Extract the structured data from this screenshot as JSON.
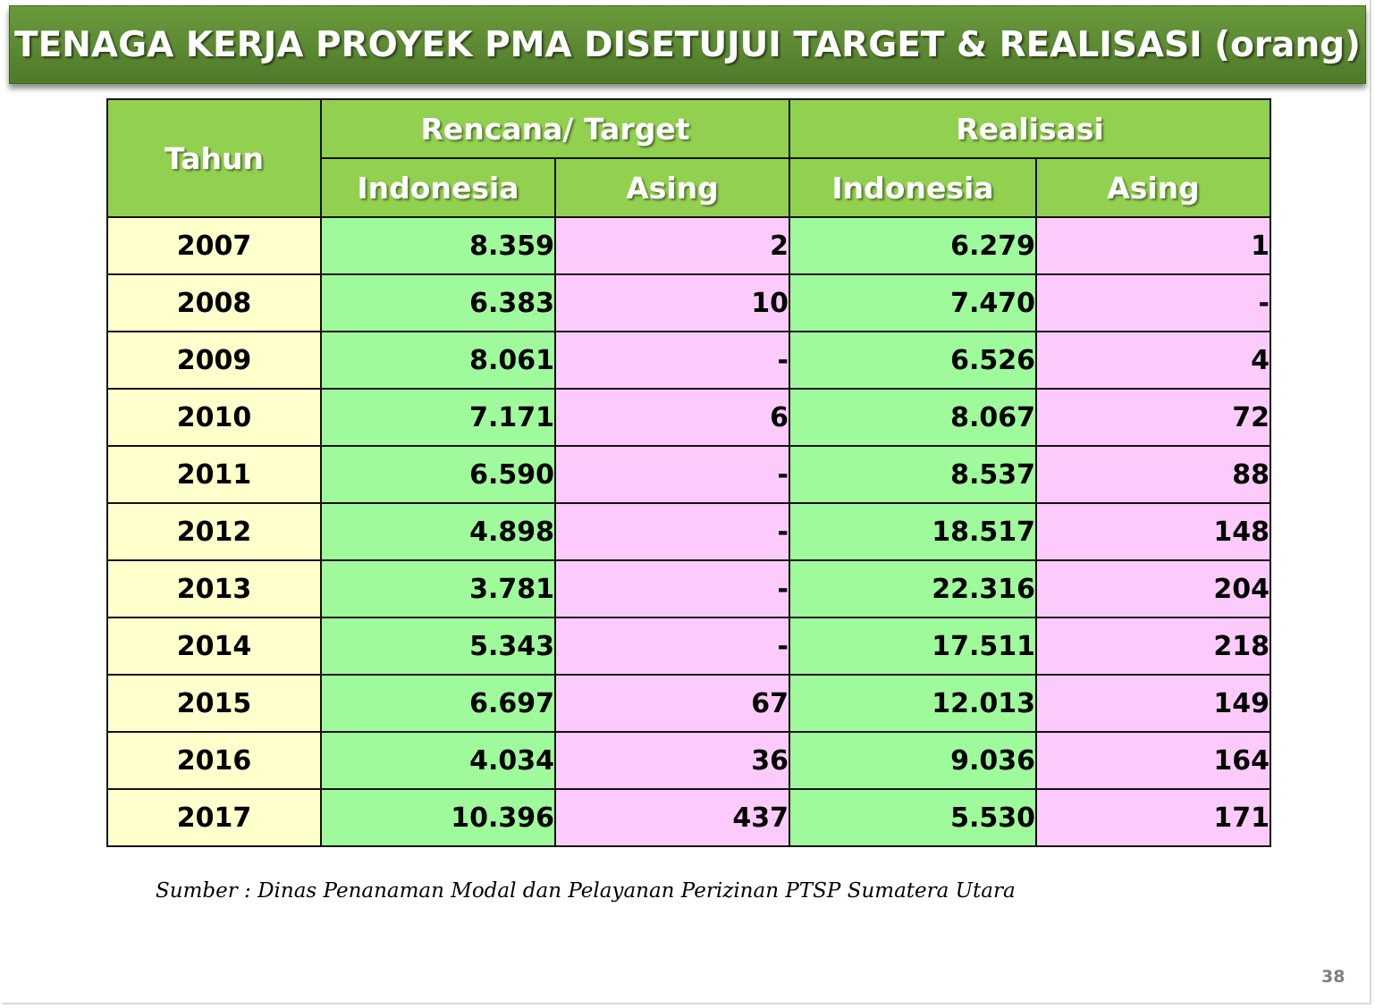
{
  "title": "TENAGA KERJA PROYEK PMA DISETUJUI TARGET & REALISASI (orang)",
  "table": {
    "year_header": "Tahun",
    "group_headers": [
      "Rencana/ Target",
      "Realisasi"
    ],
    "sub_headers": [
      "Indonesia",
      "Asing",
      "Indonesia",
      "Asing"
    ],
    "rows": [
      {
        "year": "2007",
        "target_indonesia": "8.359",
        "target_asing": "2",
        "realisasi_indonesia": "6.279",
        "realisasi_asing": "1"
      },
      {
        "year": "2008",
        "target_indonesia": "6.383",
        "target_asing": "10",
        "realisasi_indonesia": "7.470",
        "realisasi_asing": "-"
      },
      {
        "year": "2009",
        "target_indonesia": "8.061",
        "target_asing": "-",
        "realisasi_indonesia": "6.526",
        "realisasi_asing": "4"
      },
      {
        "year": "2010",
        "target_indonesia": "7.171",
        "target_asing": "6",
        "realisasi_indonesia": "8.067",
        "realisasi_asing": "72"
      },
      {
        "year": "2011",
        "target_indonesia": "6.590",
        "target_asing": "-",
        "realisasi_indonesia": "8.537",
        "realisasi_asing": "88"
      },
      {
        "year": "2012",
        "target_indonesia": "4.898",
        "target_asing": "-",
        "realisasi_indonesia": "18.517",
        "realisasi_asing": "148"
      },
      {
        "year": "2013",
        "target_indonesia": "3.781",
        "target_asing": "-",
        "realisasi_indonesia": "22.316",
        "realisasi_asing": "204"
      },
      {
        "year": "2014",
        "target_indonesia": "5.343",
        "target_asing": "-",
        "realisasi_indonesia": "17.511",
        "realisasi_asing": "218"
      },
      {
        "year": "2015",
        "target_indonesia": "6.697",
        "target_asing": "67",
        "realisasi_indonesia": "12.013",
        "realisasi_asing": "149"
      },
      {
        "year": "2016",
        "target_indonesia": "4.034",
        "target_asing": "36",
        "realisasi_indonesia": "9.036",
        "realisasi_asing": "164"
      },
      {
        "year": "2017",
        "target_indonesia": "10.396",
        "target_asing": "437",
        "realisasi_indonesia": "5.530",
        "realisasi_asing": "171"
      }
    ]
  },
  "source": "Sumber :  Dinas Penanaman Modal dan Pelayanan Perizinan PTSP Sumatera Utara",
  "page_number": "38",
  "colors": {
    "title_bar": "#5a8a33",
    "header": "#92d050",
    "year_cell": "#ffffcc",
    "indonesia_cell": "#9ffa9b",
    "asing_cell": "#fccbfb"
  }
}
